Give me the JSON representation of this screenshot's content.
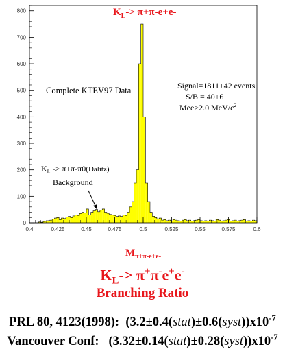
{
  "chart_data": {
    "type": "bar",
    "title": "K_L-> π+π-e+e-",
    "xlabel": "M_π+π-e+e-",
    "ylabel": "",
    "xlim": [
      0.4,
      0.6
    ],
    "ylim": [
      0,
      820
    ],
    "x_ticks": [
      "0.4",
      "0.425",
      "0.45",
      "0.475",
      "0.5",
      "0.525",
      "0.55",
      "0.575",
      "0.6"
    ],
    "y_ticks": [
      "0",
      "100",
      "200",
      "300",
      "400",
      "500",
      "600",
      "700",
      "800"
    ],
    "bin_width": 0.002,
    "bins_start": [
      0.4,
      0.402,
      0.404,
      0.406,
      0.408,
      0.41,
      0.412,
      0.414,
      0.416,
      0.418,
      0.42,
      0.422,
      0.424,
      0.426,
      0.428,
      0.43,
      0.432,
      0.434,
      0.436,
      0.438,
      0.44,
      0.442,
      0.444,
      0.446,
      0.448,
      0.45,
      0.452,
      0.454,
      0.456,
      0.458,
      0.46,
      0.462,
      0.464,
      0.466,
      0.468,
      0.47,
      0.472,
      0.474,
      0.476,
      0.478,
      0.48,
      0.482,
      0.484,
      0.486,
      0.488,
      0.49,
      0.492,
      0.494,
      0.496,
      0.498,
      0.5,
      0.502,
      0.504,
      0.506,
      0.508,
      0.51,
      0.512,
      0.514,
      0.516,
      0.518,
      0.52,
      0.522,
      0.524,
      0.526,
      0.528,
      0.53,
      0.532,
      0.534,
      0.536,
      0.538,
      0.54,
      0.542,
      0.544,
      0.546,
      0.548,
      0.55,
      0.552,
      0.554,
      0.556,
      0.558,
      0.56,
      0.562,
      0.564,
      0.566,
      0.568,
      0.57,
      0.572,
      0.574,
      0.576,
      0.578,
      0.58,
      0.582,
      0.584,
      0.586,
      0.588,
      0.59,
      0.592,
      0.594,
      0.596,
      0.598
    ],
    "values": [
      0,
      0,
      0,
      0,
      3,
      2,
      5,
      6,
      8,
      10,
      14,
      18,
      20,
      12,
      18,
      16,
      22,
      24,
      20,
      26,
      30,
      28,
      35,
      40,
      38,
      52,
      30,
      40,
      45,
      50,
      42,
      48,
      52,
      40,
      36,
      32,
      30,
      28,
      24,
      26,
      24,
      30,
      28,
      40,
      60,
      80,
      150,
      200,
      600,
      750,
      400,
      150,
      80,
      40,
      25,
      20,
      15,
      18,
      10,
      12,
      8,
      10,
      6,
      12,
      10,
      8,
      6,
      10,
      12,
      8,
      10,
      6,
      8,
      10,
      12,
      8,
      6,
      8,
      6,
      10,
      8,
      6,
      12,
      10,
      6,
      8,
      10,
      12,
      6,
      8,
      10,
      6,
      8,
      10,
      12,
      6,
      8,
      6,
      10,
      8
    ],
    "bar_color": "#ffff00",
    "outline_color": "#000000"
  },
  "annotations": {
    "complete": "Complete KTEV97 Data",
    "signal": "Signal=1811±42 events",
    "sb": "S/B  =  40±6",
    "mee": "Mee>2.0 MeV/c",
    "mee_sup": "2",
    "bg_prefix": "K",
    "bg_sub": "L",
    "bg_arrow": " ->  ",
    "bg_pions": "π+π-π0",
    "bg_dalitz": "(Dalitz)",
    "bg_label": "Background"
  },
  "plot_title": {
    "k": "K",
    "k_sub": "L",
    "arrow": "->  ",
    "rest": "π+π-e+e-"
  },
  "axis_label": {
    "m": "M",
    "sub": "π+π-e+e-"
  },
  "heading": {
    "k": "K",
    "k_sub": "L",
    "arrow": "->  ",
    "pi": "π",
    "pi_sup1": "+",
    "pi2": "π",
    "pi_sup2": "-",
    "e1": "e",
    "e_sup1": "+",
    "e2": "e",
    "e_sup2": "-",
    "subtitle": "Branching Ratio"
  },
  "results": [
    {
      "label": "PRL 80, 4123(1998):",
      "value": "(3.2±0.4(",
      "stat": "stat",
      "mid": ")±0.6(",
      "syst": "syst",
      "end": "))x10",
      "exp": "-7"
    },
    {
      "label": "Vancouver Conf:",
      "value": "(3.32±0.14(",
      "stat": "stat",
      "mid": ")±0.28(",
      "syst": "syst",
      "end": "))x10",
      "exp": "-7"
    }
  ]
}
